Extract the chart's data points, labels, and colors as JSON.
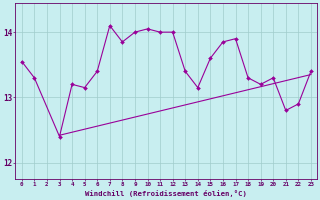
{
  "x": [
    0,
    1,
    2,
    3,
    4,
    5,
    6,
    7,
    8,
    9,
    10,
    11,
    12,
    13,
    14,
    15,
    16,
    17,
    18,
    19,
    20,
    21,
    22,
    23
  ],
  "y_line": [
    13.55,
    13.3,
    null,
    12.4,
    13.2,
    13.15,
    13.4,
    14.1,
    13.85,
    14.0,
    14.05,
    14.0,
    14.0,
    13.4,
    13.15,
    13.6,
    13.85,
    13.9,
    13.3,
    13.2,
    13.3,
    12.8,
    12.9,
    13.4
  ],
  "trend_x": [
    3,
    23
  ],
  "trend_y": [
    12.42,
    13.35
  ],
  "line_color": "#990099",
  "bg_color": "#c8eef0",
  "grid_color": "#a0cccc",
  "axis_color": "#660066",
  "tick_label_color": "#660066",
  "ylabel_values": [
    12,
    13,
    14
  ],
  "xlabel": "Windchill (Refroidissement éolien,°C)",
  "xlim": [
    -0.5,
    23.5
  ],
  "ylim": [
    11.75,
    14.45
  ]
}
